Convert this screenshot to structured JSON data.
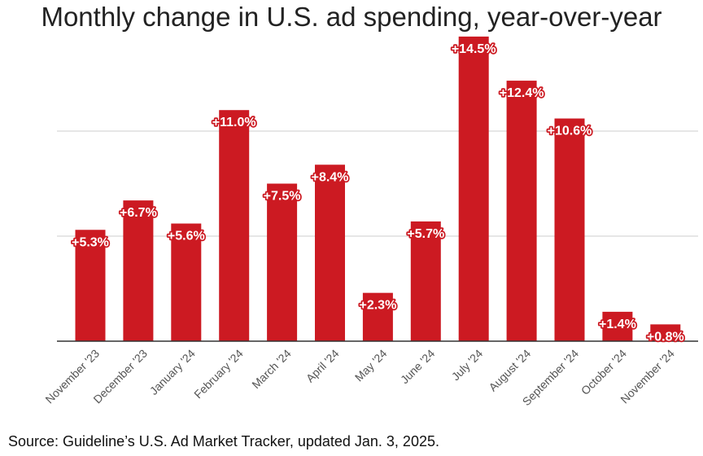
{
  "chart_data": {
    "type": "bar",
    "title": "Monthly change in U.S. ad spending, year-over-year",
    "xlabel": "",
    "ylabel": "",
    "categories": [
      "November '23",
      "December '23",
      "January '24",
      "February '24",
      "March '24",
      "April '24",
      "May '24",
      "June '24",
      "July '24",
      "August '24",
      "September '24",
      "October '24",
      "November '24"
    ],
    "values": [
      5.3,
      6.7,
      5.6,
      11.0,
      7.5,
      8.4,
      2.3,
      5.7,
      14.5,
      12.4,
      10.6,
      1.4,
      0.8
    ],
    "data_labels": [
      "+5.3%",
      "+6.7%",
      "+5.6%",
      "+11.0%",
      "+7.5%",
      "+8.4%",
      "+2.3%",
      "+5.7%",
      "+14.5%",
      "+12.4%",
      "+10.6%",
      "+1.4%",
      "+0.8%"
    ],
    "ylim": [
      0,
      15
    ],
    "gridlines": [
      0,
      5,
      10
    ],
    "grid": true,
    "legend": "none",
    "colors": {
      "bar": "#cc1a22",
      "label_text": "#ffffff",
      "grid": "#cccccc",
      "axis": "#333333",
      "tick_label": "#555555"
    }
  },
  "source": "Source: Guideline’s U.S. Ad Market Tracker, updated Jan. 3, 2025."
}
